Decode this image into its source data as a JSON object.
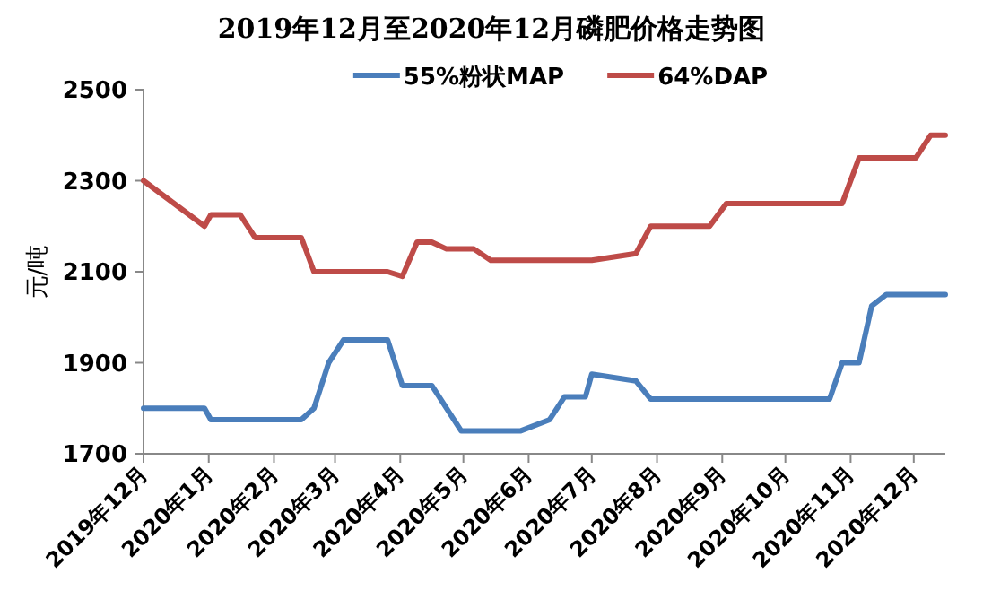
{
  "chart_data": {
    "type": "line",
    "title": "2019年12月至2020年12月磷肥价格走势图",
    "ylabel": "元/吨",
    "legend": "top",
    "xlim": [
      "2019-12-01",
      "2020-12-16"
    ],
    "ylim": [
      1700,
      2500
    ],
    "yticks": [
      1700,
      1900,
      2100,
      2300,
      2500
    ],
    "xticks": [
      {
        "value": "2019-12-01",
        "label": "2019年12月"
      },
      {
        "value": "2020-01-01",
        "label": "2020年1月"
      },
      {
        "value": "2020-02-01",
        "label": "2020年2月"
      },
      {
        "value": "2020-03-01",
        "label": "2020年3月"
      },
      {
        "value": "2020-04-01",
        "label": "2020年4月"
      },
      {
        "value": "2020-05-01",
        "label": "2020年5月"
      },
      {
        "value": "2020-06-01",
        "label": "2020年6月"
      },
      {
        "value": "2020-07-01",
        "label": "2020年7月"
      },
      {
        "value": "2020-08-01",
        "label": "2020年8月"
      },
      {
        "value": "2020-09-01",
        "label": "2020年9月"
      },
      {
        "value": "2020-10-01",
        "label": "2020年10月"
      },
      {
        "value": "2020-11-01",
        "label": "2020年11月"
      },
      {
        "value": "2020-12-01",
        "label": "2020年12月"
      }
    ],
    "series": [
      {
        "name": "55%粉状MAP",
        "color": "#4a7ebb",
        "x": [
          "2019-12-01",
          "2019-12-30",
          "2020-01-02",
          "2020-02-14",
          "2020-02-20",
          "2020-02-27",
          "2020-03-05",
          "2020-03-26",
          "2020-04-02",
          "2020-04-16",
          "2020-04-30",
          "2020-05-28",
          "2020-06-11",
          "2020-06-18",
          "2020-06-28",
          "2020-07-01",
          "2020-07-22",
          "2020-07-29",
          "2020-10-22",
          "2020-10-28",
          "2020-11-05",
          "2020-11-11",
          "2020-11-18",
          "2020-12-16"
        ],
        "values": [
          1800,
          1800,
          1775,
          1775,
          1800,
          1900,
          1950,
          1950,
          1850,
          1850,
          1750,
          1750,
          1775,
          1825,
          1825,
          1875,
          1860,
          1820,
          1820,
          1900,
          1900,
          2025,
          2050,
          2050
        ]
      },
      {
        "name": "64%DAP",
        "color": "#be4b48",
        "x": [
          "2019-12-01",
          "2019-12-30",
          "2020-01-02",
          "2020-01-16",
          "2020-01-23",
          "2020-02-14",
          "2020-02-20",
          "2020-03-26",
          "2020-04-02",
          "2020-04-09",
          "2020-04-16",
          "2020-04-23",
          "2020-05-06",
          "2020-05-14",
          "2020-07-01",
          "2020-07-22",
          "2020-07-29",
          "2020-08-26",
          "2020-09-03",
          "2020-10-28",
          "2020-11-05",
          "2020-12-02",
          "2020-12-09",
          "2020-12-16"
        ],
        "values": [
          2300,
          2200,
          2225,
          2225,
          2175,
          2175,
          2100,
          2100,
          2090,
          2165,
          2165,
          2150,
          2150,
          2125,
          2125,
          2140,
          2200,
          2200,
          2250,
          2250,
          2350,
          2350,
          2400,
          2400
        ]
      }
    ]
  }
}
